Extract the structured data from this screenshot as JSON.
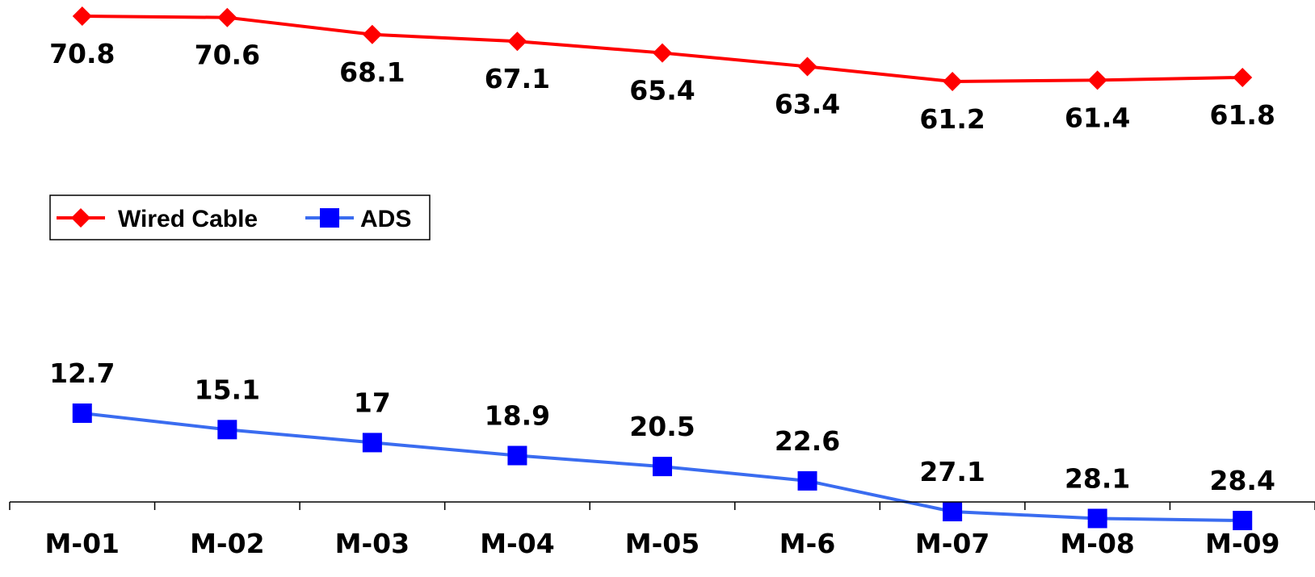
{
  "chart_data": {
    "type": "line",
    "title": "",
    "xlabel": "",
    "ylabel": "",
    "categories": [
      "M-01",
      "M-02",
      "M-03",
      "M-04",
      "M-05",
      "M-6",
      "M-07",
      "M-08",
      "M-09"
    ],
    "ylim": [
      0,
      72
    ],
    "grid": false,
    "legend_position": "left-middle",
    "series": [
      {
        "name": "Wired Cable",
        "color": "#ff0000",
        "marker": "diamond",
        "values": [
          70.8,
          70.6,
          68.1,
          67.1,
          65.4,
          63.4,
          61.2,
          61.4,
          61.8
        ],
        "labels": [
          "70.8",
          "70.6",
          "68.1",
          "67.1",
          "65.4",
          "63.4",
          "61.2",
          "61.4",
          "61.8"
        ],
        "label_position": "below"
      },
      {
        "name": "ADS",
        "color": "#0000ff",
        "line_color": "#3a6cf0",
        "marker": "square",
        "values": [
          12.7,
          15.1,
          17,
          18.9,
          20.5,
          22.6,
          27.1,
          28.1,
          28.4
        ],
        "labels": [
          "12.7",
          "15.1",
          "17",
          "18.9",
          "20.5",
          "22.6",
          "27.1",
          "28.1",
          "28.4"
        ],
        "label_position": "above"
      }
    ]
  }
}
